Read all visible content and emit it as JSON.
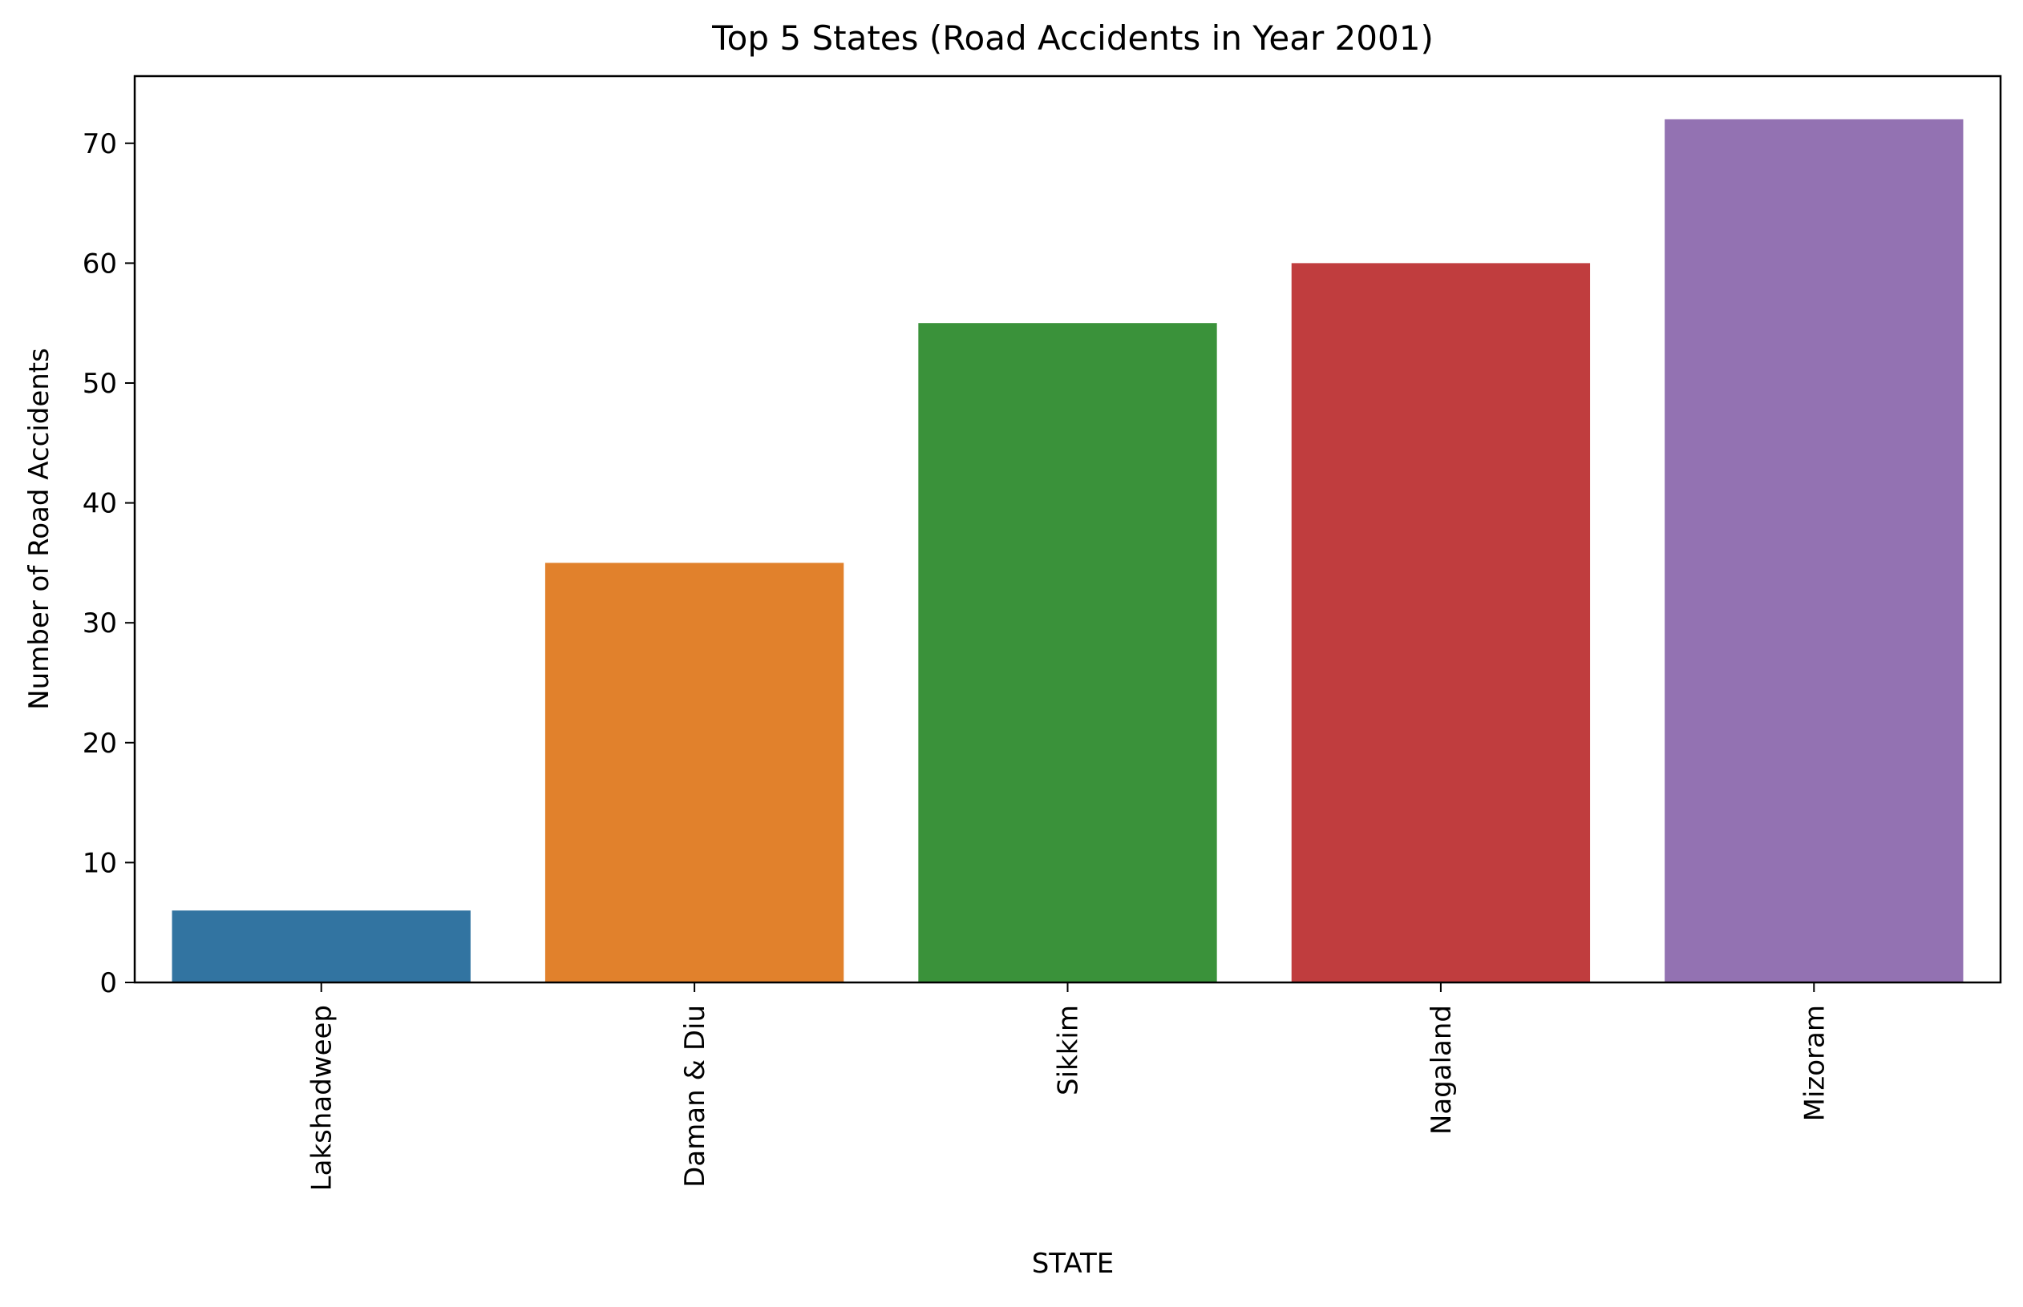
{
  "chart_data": {
    "type": "bar",
    "title": "Top 5 States (Road Accidents in Year 2001)",
    "xlabel": "STATE",
    "ylabel": "Number of Road Accidents",
    "categories": [
      "Lakshadweep",
      "Daman & Diu",
      "Sikkim",
      "Nagaland",
      "Mizoram"
    ],
    "values": [
      6,
      35,
      55,
      60,
      72
    ],
    "colors": [
      "#3274a1",
      "#e1812c",
      "#3a923a",
      "#c03d3e",
      "#9372b2"
    ],
    "ylim": [
      0,
      75.6
    ],
    "yticks": [
      0,
      10,
      20,
      30,
      40,
      50,
      60,
      70
    ],
    "grid": false,
    "legend": false
  }
}
